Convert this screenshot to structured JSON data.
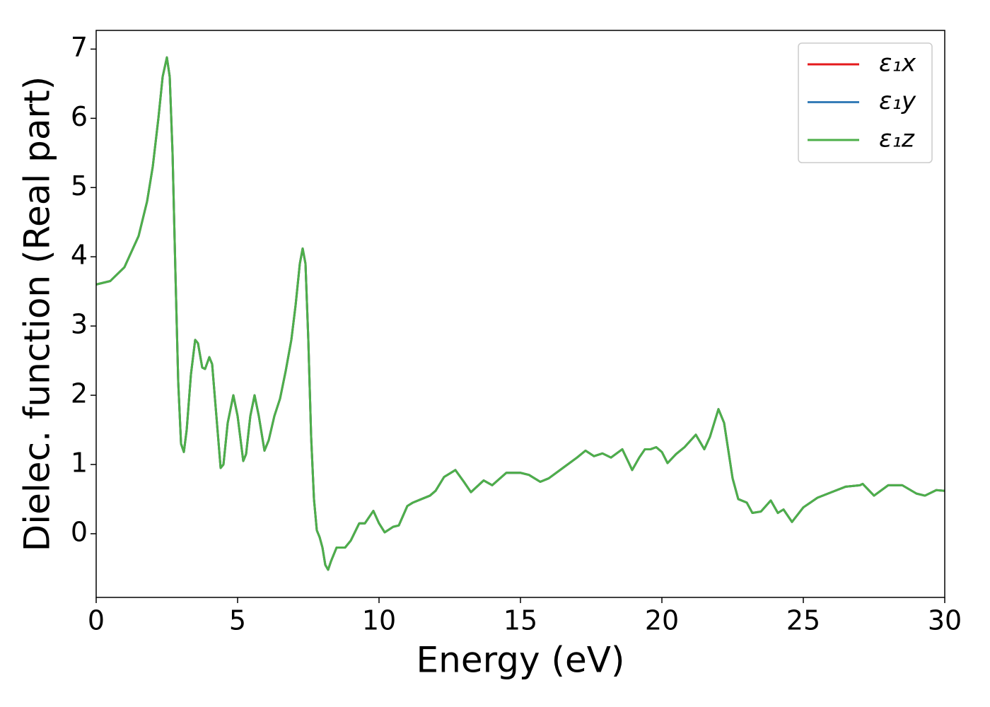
{
  "chart_data": {
    "type": "line",
    "xlabel": "Energy (eV)",
    "ylabel": "Dielec. function (Real part)",
    "x": [
      0,
      0.5,
      1.0,
      1.5,
      1.8,
      2.0,
      2.2,
      2.35,
      2.5,
      2.6,
      2.7,
      2.8,
      2.9,
      3.0,
      3.1,
      3.2,
      3.35,
      3.5,
      3.6,
      3.75,
      3.85,
      4.0,
      4.1,
      4.25,
      4.4,
      4.5,
      4.65,
      4.85,
      5.0,
      5.2,
      5.3,
      5.45,
      5.6,
      5.75,
      5.95,
      6.1,
      6.3,
      6.5,
      6.7,
      6.9,
      7.05,
      7.2,
      7.3,
      7.4,
      7.5,
      7.6,
      7.7,
      7.8,
      7.9,
      8.0,
      8.1,
      8.2,
      8.3,
      8.5,
      8.8,
      9.0,
      9.3,
      9.5,
      9.8,
      10.0,
      10.2,
      10.5,
      10.7,
      11.0,
      11.2,
      11.5,
      11.8,
      12.0,
      12.3,
      12.7,
      13.0,
      13.25,
      13.7,
      14.0,
      14.5,
      15.0,
      15.3,
      15.7,
      16.0,
      16.5,
      17.0,
      17.3,
      17.6,
      17.9,
      18.2,
      18.6,
      18.8,
      18.95,
      19.2,
      19.4,
      19.6,
      19.8,
      20.0,
      20.2,
      20.5,
      20.8,
      21.2,
      21.5,
      21.7,
      22.0,
      22.2,
      22.5,
      22.7,
      23.0,
      23.2,
      23.5,
      23.85,
      24.1,
      24.3,
      24.6,
      25.0,
      25.5,
      26.0,
      26.5,
      27.0,
      27.1,
      27.5,
      28.0,
      28.5,
      29.0,
      29.3,
      29.7,
      30.0
    ],
    "series": [
      {
        "name": "ε₁x",
        "color": "#e41a1c",
        "values": [
          3.6,
          3.65,
          3.85,
          4.3,
          4.8,
          5.3,
          6.0,
          6.6,
          6.88,
          6.6,
          5.5,
          3.8,
          2.2,
          1.3,
          1.18,
          1.5,
          2.3,
          2.8,
          2.75,
          2.4,
          2.38,
          2.55,
          2.45,
          1.7,
          0.95,
          1.0,
          1.6,
          2.0,
          1.7,
          1.05,
          1.15,
          1.7,
          2.0,
          1.7,
          1.2,
          1.35,
          1.7,
          1.95,
          2.35,
          2.8,
          3.3,
          3.9,
          4.12,
          3.9,
          2.8,
          1.4,
          0.5,
          0.05,
          -0.05,
          -0.2,
          -0.45,
          -0.52,
          -0.4,
          -0.2,
          -0.2,
          -0.1,
          0.15,
          0.15,
          0.33,
          0.15,
          0.02,
          0.1,
          0.12,
          0.4,
          0.45,
          0.5,
          0.55,
          0.62,
          0.82,
          0.92,
          0.75,
          0.6,
          0.77,
          0.7,
          0.88,
          0.88,
          0.85,
          0.75,
          0.8,
          0.95,
          1.1,
          1.2,
          1.12,
          1.16,
          1.1,
          1.22,
          1.05,
          0.92,
          1.1,
          1.22,
          1.22,
          1.25,
          1.18,
          1.02,
          1.15,
          1.25,
          1.43,
          1.22,
          1.4,
          1.8,
          1.6,
          0.8,
          0.5,
          0.45,
          0.3,
          0.32,
          0.48,
          0.3,
          0.35,
          0.17,
          0.38,
          0.52,
          0.6,
          0.68,
          0.7,
          0.72,
          0.55,
          0.7,
          0.7,
          0.58,
          0.55,
          0.63,
          0.62
        ]
      },
      {
        "name": "ε₁y",
        "color": "#377eb8",
        "values": [
          3.6,
          3.65,
          3.85,
          4.3,
          4.8,
          5.3,
          6.0,
          6.6,
          6.88,
          6.6,
          5.5,
          3.8,
          2.2,
          1.3,
          1.18,
          1.5,
          2.3,
          2.8,
          2.75,
          2.4,
          2.38,
          2.55,
          2.45,
          1.7,
          0.95,
          1.0,
          1.6,
          2.0,
          1.7,
          1.05,
          1.15,
          1.7,
          2.0,
          1.7,
          1.2,
          1.35,
          1.7,
          1.95,
          2.35,
          2.8,
          3.3,
          3.9,
          4.12,
          3.9,
          2.8,
          1.4,
          0.5,
          0.05,
          -0.05,
          -0.2,
          -0.45,
          -0.52,
          -0.4,
          -0.2,
          -0.2,
          -0.1,
          0.15,
          0.15,
          0.33,
          0.15,
          0.02,
          0.1,
          0.12,
          0.4,
          0.45,
          0.5,
          0.55,
          0.62,
          0.82,
          0.92,
          0.75,
          0.6,
          0.77,
          0.7,
          0.88,
          0.88,
          0.85,
          0.75,
          0.8,
          0.95,
          1.1,
          1.2,
          1.12,
          1.16,
          1.1,
          1.22,
          1.05,
          0.92,
          1.1,
          1.22,
          1.22,
          1.25,
          1.18,
          1.02,
          1.15,
          1.25,
          1.43,
          1.22,
          1.4,
          1.8,
          1.6,
          0.8,
          0.5,
          0.45,
          0.3,
          0.32,
          0.48,
          0.3,
          0.35,
          0.17,
          0.38,
          0.52,
          0.6,
          0.68,
          0.7,
          0.72,
          0.55,
          0.7,
          0.7,
          0.58,
          0.55,
          0.63,
          0.62
        ]
      },
      {
        "name": "ε₁z",
        "color": "#4daf4a",
        "values": [
          3.6,
          3.65,
          3.85,
          4.3,
          4.8,
          5.3,
          6.0,
          6.6,
          6.88,
          6.6,
          5.5,
          3.8,
          2.2,
          1.3,
          1.18,
          1.5,
          2.3,
          2.8,
          2.75,
          2.4,
          2.38,
          2.55,
          2.45,
          1.7,
          0.95,
          1.0,
          1.6,
          2.0,
          1.7,
          1.05,
          1.15,
          1.7,
          2.0,
          1.7,
          1.2,
          1.35,
          1.7,
          1.95,
          2.35,
          2.8,
          3.3,
          3.9,
          4.12,
          3.9,
          2.8,
          1.4,
          0.5,
          0.05,
          -0.05,
          -0.2,
          -0.45,
          -0.52,
          -0.4,
          -0.2,
          -0.2,
          -0.1,
          0.15,
          0.15,
          0.33,
          0.15,
          0.02,
          0.1,
          0.12,
          0.4,
          0.45,
          0.5,
          0.55,
          0.62,
          0.82,
          0.92,
          0.75,
          0.6,
          0.77,
          0.7,
          0.88,
          0.88,
          0.85,
          0.75,
          0.8,
          0.95,
          1.1,
          1.2,
          1.12,
          1.16,
          1.1,
          1.22,
          1.05,
          0.92,
          1.1,
          1.22,
          1.22,
          1.25,
          1.18,
          1.02,
          1.15,
          1.25,
          1.43,
          1.22,
          1.4,
          1.8,
          1.6,
          0.8,
          0.5,
          0.45,
          0.3,
          0.32,
          0.48,
          0.3,
          0.35,
          0.17,
          0.38,
          0.52,
          0.6,
          0.68,
          0.7,
          0.72,
          0.55,
          0.7,
          0.7,
          0.58,
          0.55,
          0.63,
          0.62
        ]
      }
    ],
    "xlim": [
      0,
      30
    ],
    "xticks": [
      0,
      5,
      10,
      15,
      20,
      25,
      30
    ],
    "ylim": [
      -0.92,
      7.27
    ],
    "yticks": [
      0,
      1,
      2,
      3,
      4,
      5,
      6,
      7
    ],
    "grid": false,
    "legend": "upper right"
  }
}
